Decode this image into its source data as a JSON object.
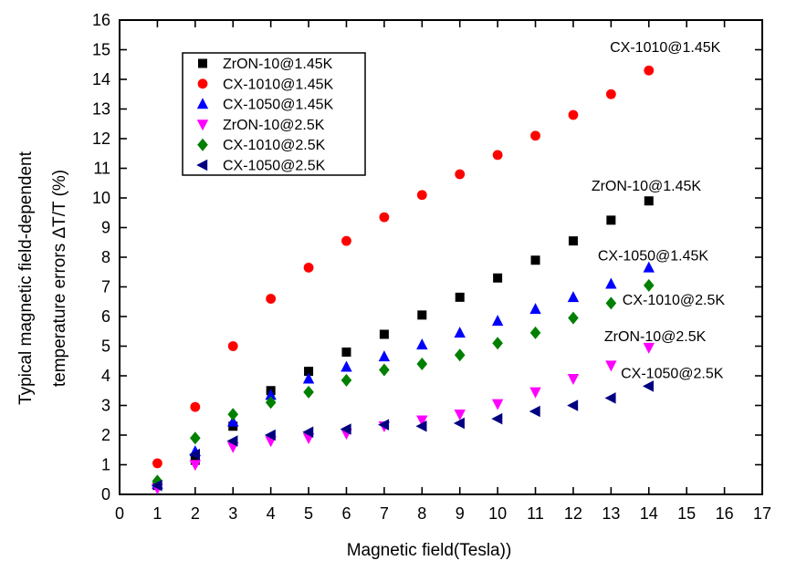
{
  "figure": {
    "background": "#ffffff",
    "frame_color": "#000000"
  },
  "chart_data": {
    "type": "scatter",
    "title": "",
    "xlabel": "Magnetic field(Tesla))",
    "ylabel_lines": [
      "Typical magnetic field-dependent",
      "temperature errors ΔT/T (%)"
    ],
    "xlim": [
      0,
      17
    ],
    "ylim": [
      0,
      16
    ],
    "xtick_step": 1,
    "ytick_step": 1,
    "grid": false,
    "legend_position": "upper-left-inside",
    "x": [
      1,
      2,
      3,
      4,
      5,
      6,
      7,
      8,
      9,
      10,
      11,
      12,
      13,
      14
    ],
    "series": [
      {
        "name": "ZrON-10@1.45K",
        "marker": "square",
        "color": "#000000",
        "values": [
          0.3,
          1.15,
          2.3,
          3.5,
          4.15,
          4.8,
          5.4,
          6.05,
          6.65,
          7.3,
          7.9,
          8.55,
          9.25,
          9.9
        ]
      },
      {
        "name": "CX-1010@1.45K",
        "marker": "circle",
        "color": "#ff0000",
        "values": [
          1.05,
          2.95,
          5.0,
          6.6,
          7.65,
          8.55,
          9.35,
          10.1,
          10.8,
          11.45,
          12.1,
          12.8,
          13.5,
          14.3
        ]
      },
      {
        "name": "CX-1050@1.45K",
        "marker": "triangle-up",
        "color": "#0000ff",
        "values": [
          0.35,
          1.45,
          2.45,
          3.35,
          3.9,
          4.3,
          4.65,
          5.05,
          5.45,
          5.85,
          6.25,
          6.65,
          7.1,
          7.65
        ]
      },
      {
        "name": "ZrON-10@2.5K",
        "marker": "triangle-down",
        "color": "#ff00ff",
        "values": [
          0.2,
          1.0,
          1.6,
          1.8,
          1.9,
          2.05,
          2.3,
          2.5,
          2.7,
          3.05,
          3.45,
          3.9,
          4.35,
          4.95
        ]
      },
      {
        "name": "CX-1010@2.5K",
        "marker": "diamond",
        "color": "#008000",
        "values": [
          0.45,
          1.9,
          2.7,
          3.1,
          3.45,
          3.85,
          4.2,
          4.4,
          4.7,
          5.1,
          5.45,
          5.95,
          6.45,
          7.05
        ]
      },
      {
        "name": "CX-1050@2.5K",
        "marker": "triangle-left",
        "color": "#000080",
        "values": [
          0.3,
          1.35,
          1.8,
          2.0,
          2.1,
          2.2,
          2.35,
          2.3,
          2.4,
          2.55,
          2.8,
          3.0,
          3.25,
          3.65
        ]
      }
    ],
    "annotations": [
      {
        "text": "CX-1010@1.45K",
        "x": 12.97,
        "y": 15.1
      },
      {
        "text": "ZrON-10@1.45K",
        "x": 12.48,
        "y": 10.42
      },
      {
        "text": "CX-1050@1.45K",
        "x": 12.65,
        "y": 8.06
      },
      {
        "text": "CX-1010@2.5K",
        "x": 13.3,
        "y": 6.57
      },
      {
        "text": "ZrON-10@2.5K",
        "x": 12.82,
        "y": 5.34
      },
      {
        "text": "CX-1050@2.5K",
        "x": 13.26,
        "y": 4.09
      }
    ]
  }
}
